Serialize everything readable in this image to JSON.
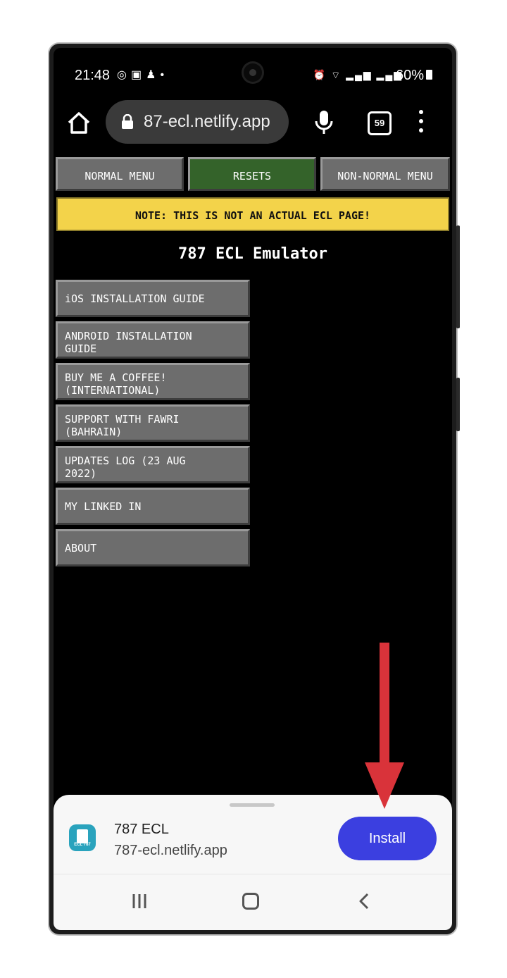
{
  "status_bar": {
    "time": "21:48",
    "left_icons": [
      "instagram-icon",
      "gallery-icon",
      "snapchat-icon",
      "dot-icon"
    ],
    "battery": "60%"
  },
  "browser": {
    "url": "87-ecl.netlify.app",
    "tab_count": "59"
  },
  "top_buttons": {
    "normal_menu": "NORMAL MENU",
    "resets": "RESETS",
    "non_normal_menu": "NON-NORMAL MENU"
  },
  "note": "NOTE: THIS IS NOT AN ACTUAL ECL PAGE!",
  "page_title": "787 ECL Emulator",
  "menu_items": [
    {
      "line1": "iOS INSTALLATION GUIDE",
      "line2": ""
    },
    {
      "line1": "ANDROID INSTALLATION",
      "line2": "GUIDE"
    },
    {
      "line1": "BUY ME A COFFEE!",
      "line2": "(INTERNATIONAL)"
    },
    {
      "line1": "SUPPORT WITH FAWRI",
      "line2": "(BAHRAIN)"
    },
    {
      "line1": "UPDATES LOG (23 AUG",
      "line2": "2022)"
    },
    {
      "line1": "MY LINKED IN",
      "line2": ""
    },
    {
      "line1": "ABOUT",
      "line2": ""
    }
  ],
  "install_sheet": {
    "icon_label": "ECL 787",
    "app_name": "787 ECL",
    "app_domain": "787-ecl.netlify.app",
    "install_label": "Install"
  },
  "colors": {
    "resets_button": "#34632a",
    "note_banner": "#f3d34a",
    "install_button": "#3b3fe0",
    "arrow": "#d9333a"
  }
}
